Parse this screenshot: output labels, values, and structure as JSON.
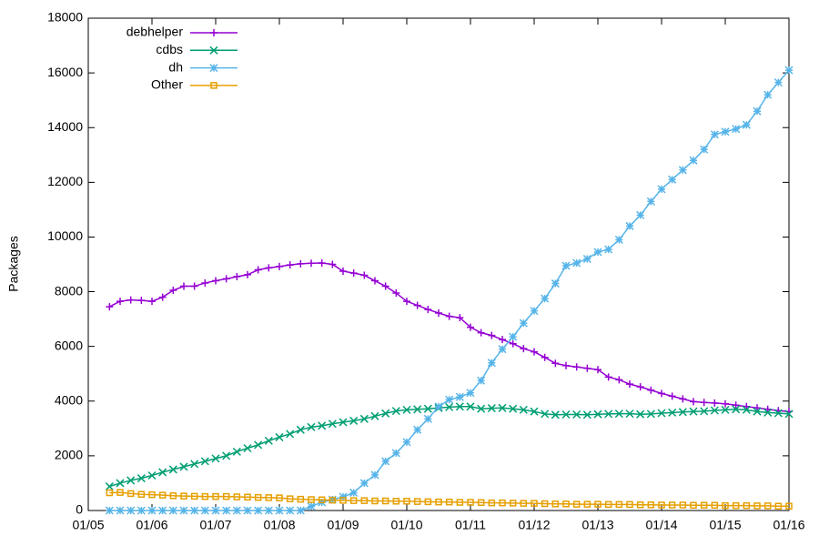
{
  "chart_data": {
    "type": "line",
    "y_label": "Packages",
    "x": [
      "05/05",
      "07/05",
      "09/05",
      "11/05",
      "01/06",
      "03/06",
      "05/06",
      "07/06",
      "09/06",
      "11/06",
      "01/07",
      "03/07",
      "05/07",
      "07/07",
      "09/07",
      "11/07",
      "01/08",
      "03/08",
      "05/08",
      "07/08",
      "09/08",
      "11/08",
      "01/09",
      "03/09",
      "05/09",
      "07/09",
      "09/09",
      "11/09",
      "01/10",
      "03/10",
      "05/10",
      "07/10",
      "09/10",
      "11/10",
      "01/11",
      "03/11",
      "05/11",
      "07/11",
      "09/11",
      "11/11",
      "01/12",
      "03/12",
      "05/12",
      "07/12",
      "09/12",
      "11/12",
      "01/13",
      "03/13",
      "05/13",
      "07/13",
      "09/13",
      "11/13",
      "01/14",
      "03/14",
      "05/14",
      "07/14",
      "09/14",
      "11/14",
      "01/15",
      "03/15",
      "05/15",
      "07/15",
      "09/15",
      "11/15",
      "01/16"
    ],
    "series": [
      {
        "name": "debhelper",
        "color": "#9400d3",
        "marker": "plus",
        "values": [
          7450,
          7650,
          7700,
          7680,
          7650,
          7800,
          8050,
          8200,
          8200,
          8320,
          8400,
          8470,
          8550,
          8620,
          8800,
          8870,
          8920,
          8980,
          9020,
          9040,
          9050,
          9000,
          8750,
          8680,
          8600,
          8400,
          8200,
          7950,
          7650,
          7500,
          7350,
          7220,
          7100,
          7050,
          6700,
          6500,
          6400,
          6250,
          6100,
          5920,
          5800,
          5600,
          5380,
          5300,
          5250,
          5200,
          5150,
          4880,
          4780,
          4620,
          4520,
          4400,
          4280,
          4180,
          4080,
          3980,
          3950,
          3930,
          3900,
          3850,
          3800,
          3750,
          3700,
          3650,
          3620
        ]
      },
      {
        "name": "cdbs",
        "color": "#009e73",
        "marker": "cross",
        "values": [
          880,
          1000,
          1100,
          1180,
          1280,
          1400,
          1500,
          1600,
          1700,
          1800,
          1900,
          2000,
          2150,
          2280,
          2400,
          2550,
          2680,
          2800,
          2950,
          3050,
          3100,
          3170,
          3230,
          3280,
          3350,
          3450,
          3550,
          3640,
          3680,
          3700,
          3720,
          3750,
          3780,
          3800,
          3800,
          3720,
          3740,
          3750,
          3720,
          3680,
          3620,
          3530,
          3500,
          3510,
          3510,
          3500,
          3520,
          3530,
          3540,
          3540,
          3520,
          3530,
          3560,
          3580,
          3600,
          3620,
          3630,
          3660,
          3680,
          3700,
          3680,
          3620,
          3580,
          3560,
          3530
        ]
      },
      {
        "name": "dh",
        "color": "#56b4e9",
        "marker": "star",
        "values": [
          0,
          0,
          0,
          0,
          0,
          0,
          0,
          0,
          0,
          0,
          0,
          0,
          0,
          0,
          0,
          0,
          0,
          0,
          0,
          150,
          300,
          400,
          500,
          650,
          1000,
          1300,
          1800,
          2100,
          2500,
          2950,
          3350,
          3800,
          4050,
          4150,
          4300,
          4750,
          5400,
          5900,
          6350,
          6850,
          7300,
          7750,
          8300,
          8950,
          9050,
          9200,
          9450,
          9550,
          9900,
          10400,
          10800,
          11300,
          11750,
          12100,
          12450,
          12800,
          13200,
          13750,
          13850,
          13950,
          14100,
          14600,
          15200,
          15650,
          16100
        ]
      },
      {
        "name": "Other",
        "color": "#e69f00",
        "marker": "square",
        "values": [
          650,
          660,
          620,
          590,
          580,
          560,
          540,
          530,
          520,
          510,
          510,
          510,
          500,
          490,
          480,
          470,
          460,
          430,
          410,
          400,
          390,
          380,
          370,
          360,
          360,
          350,
          350,
          340,
          340,
          330,
          320,
          310,
          310,
          300,
          300,
          290,
          280,
          280,
          270,
          260,
          260,
          250,
          240,
          240,
          230,
          230,
          230,
          220,
          220,
          220,
          210,
          210,
          200,
          200,
          200,
          190,
          190,
          190,
          180,
          180,
          180,
          170,
          170,
          160,
          160
        ]
      }
    ],
    "xlim": [
      "01/05",
      "01/16"
    ],
    "xticks": [
      "01/05",
      "01/06",
      "01/07",
      "01/08",
      "01/09",
      "01/10",
      "01/11",
      "01/12",
      "01/13",
      "01/14",
      "01/15",
      "01/16"
    ],
    "ylim": [
      0,
      18000
    ],
    "yticks": [
      0,
      2000,
      4000,
      6000,
      8000,
      10000,
      12000,
      14000,
      16000,
      18000
    ],
    "legend": "top left"
  }
}
